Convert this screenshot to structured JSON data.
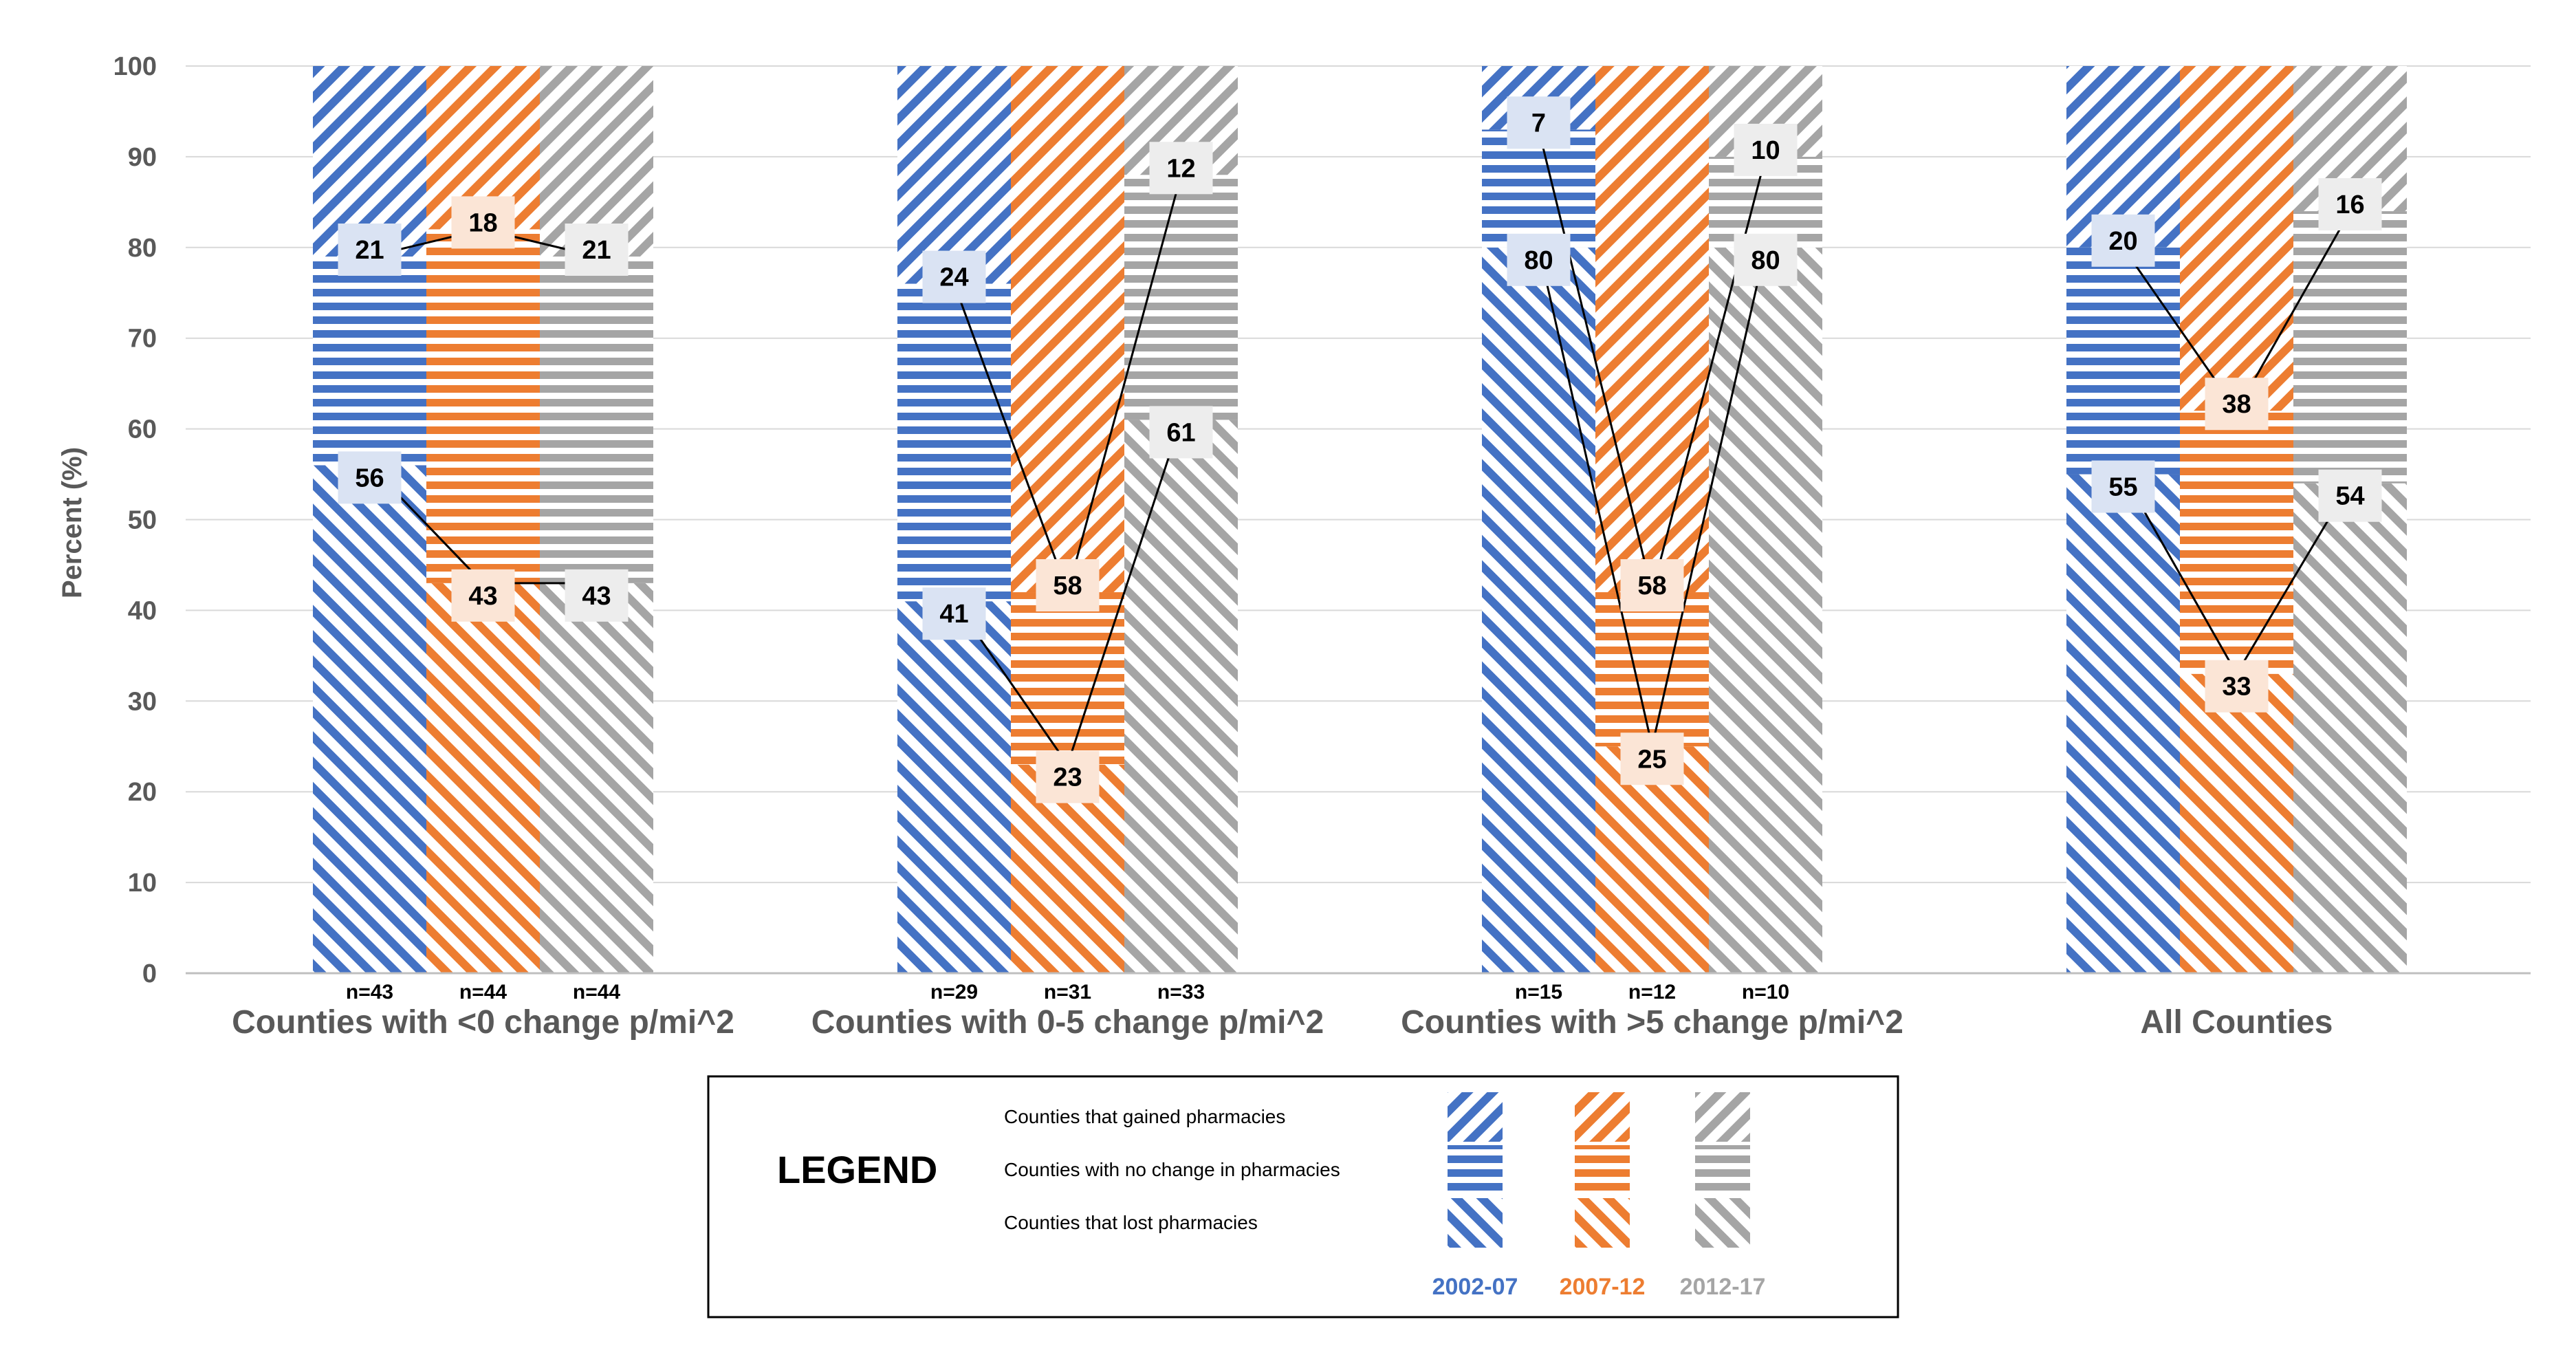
{
  "chart_data": {
    "type": "bar",
    "subtype": "stacked-100",
    "title": "",
    "xlabel": "",
    "ylabel": "Percent (%)",
    "ylim": [
      0,
      100
    ],
    "yticks": [
      0,
      10,
      20,
      30,
      40,
      50,
      60,
      70,
      80,
      90,
      100
    ],
    "grid": true,
    "categories": [
      "Counties with <0 change p/mi^2",
      "Counties with 0-5 change p/mi^2",
      "Counties with >5 change p/mi^2",
      "All Counties"
    ],
    "periods": [
      "2002-07",
      "2007-12",
      "2012-17"
    ],
    "period_colors": {
      "2002-07": "#4472c4",
      "2007-12": "#ed7d31",
      "2012-17": "#a5a5a5"
    },
    "n_labels": [
      [
        "n=43",
        "n=44",
        "n=44"
      ],
      [
        "n=29",
        "n=31",
        "n=33"
      ],
      [
        "n=15",
        "n=12",
        "n=10"
      ],
      [
        "",
        "",
        ""
      ]
    ],
    "series": [
      {
        "name": "Counties that lost pharmacies",
        "pattern": "diagonal-down",
        "values": [
          [
            56,
            43,
            43
          ],
          [
            41,
            23,
            61
          ],
          [
            80,
            25,
            80
          ],
          [
            55,
            33,
            54
          ]
        ]
      },
      {
        "name": "Counties with no change in pharmacies",
        "pattern": "horizontal",
        "values": [
          [
            23,
            39,
            36
          ],
          [
            35,
            19,
            27
          ],
          [
            13,
            17,
            10
          ],
          [
            25,
            29,
            30
          ]
        ]
      },
      {
        "name": "Counties that gained pharmacies",
        "pattern": "diagonal-up",
        "values": [
          [
            21,
            18,
            21
          ],
          [
            24,
            58,
            12
          ],
          [
            7,
            58,
            10
          ],
          [
            20,
            38,
            16
          ]
        ]
      }
    ],
    "trend_lines": [
      {
        "stack": "gained",
        "points": [
          [
            21,
            18,
            21
          ],
          [
            24,
            58,
            12
          ],
          [
            7,
            58,
            10
          ],
          [
            20,
            38,
            16
          ]
        ]
      },
      {
        "stack": "lost",
        "points": [
          [
            56,
            43,
            43
          ],
          [
            41,
            23,
            61
          ],
          [
            80,
            25,
            80
          ],
          [
            55,
            33,
            54
          ]
        ]
      }
    ],
    "legend": {
      "title": "LEGEND",
      "position": "bottom-center",
      "items": [
        "Counties that gained pharmacies",
        "Counties with no change in pharmacies",
        "Counties that lost pharmacies"
      ],
      "years": [
        "2002-07",
        "2007-12",
        "2012-17"
      ]
    }
  }
}
